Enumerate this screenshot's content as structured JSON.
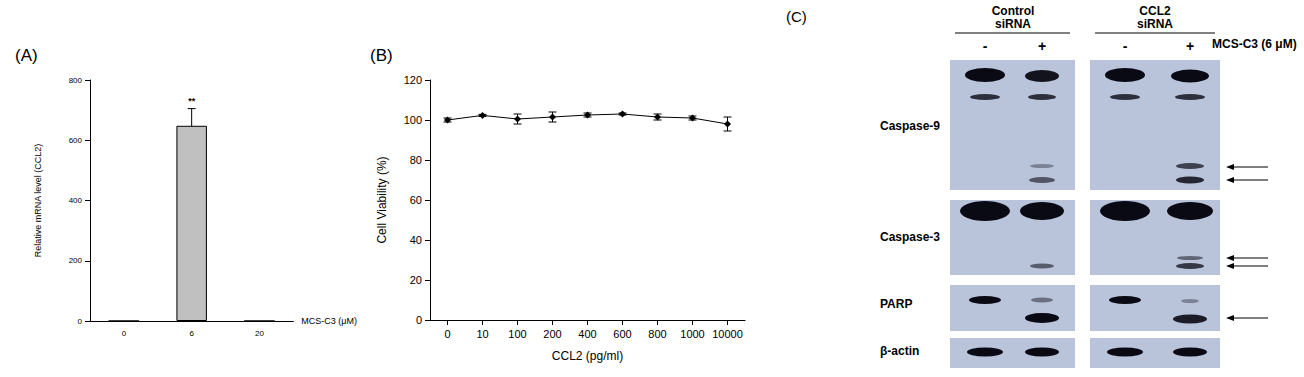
{
  "chart_data": [
    {
      "type": "bar",
      "title": "(A)",
      "x_label": "MCS-C3 (μM)",
      "y_label": "Relative mRNA level (CCL2)",
      "categories": [
        "0",
        "6",
        "20"
      ],
      "values": [
        0,
        648,
        0
      ],
      "errors": [
        null,
        57,
        null
      ],
      "color": "#c0c0c0",
      "ylim": [
        0,
        800
      ],
      "yticks": [
        0,
        200,
        400,
        600,
        800
      ],
      "grid": false,
      "annotations": [
        {
          "text": "**",
          "x": "6"
        }
      ]
    },
    {
      "type": "line",
      "title": "(B)",
      "x_label": "CCL2 (pg/ml)",
      "y_label": "Cell Viability (%)",
      "categories": [
        "0",
        "10",
        "100",
        "200",
        "400",
        "600",
        "800",
        "1000",
        "10000"
      ],
      "values": [
        100,
        102.3,
        100.5,
        101.5,
        102.5,
        103,
        101.5,
        101,
        98
      ],
      "errors": [
        1,
        0.5,
        2.5,
        2.5,
        1,
        0.5,
        1.5,
        1,
        3.5
      ],
      "color": "#000000",
      "marker": "diamond",
      "ylim": [
        0,
        120
      ],
      "yticks": [
        0,
        20,
        40,
        60,
        80,
        100,
        120
      ],
      "grid": false
    }
  ],
  "blot": {
    "title": "(C)",
    "groups": [
      "Control siRNA",
      "CCL2 siRNA"
    ],
    "treatment": "MCS-C3 (6 μM)",
    "lanes": [
      "-",
      "+",
      "-",
      "+"
    ],
    "rows": [
      "Caspase-9",
      "Caspase-3",
      "PARP",
      "β-actin"
    ]
  }
}
